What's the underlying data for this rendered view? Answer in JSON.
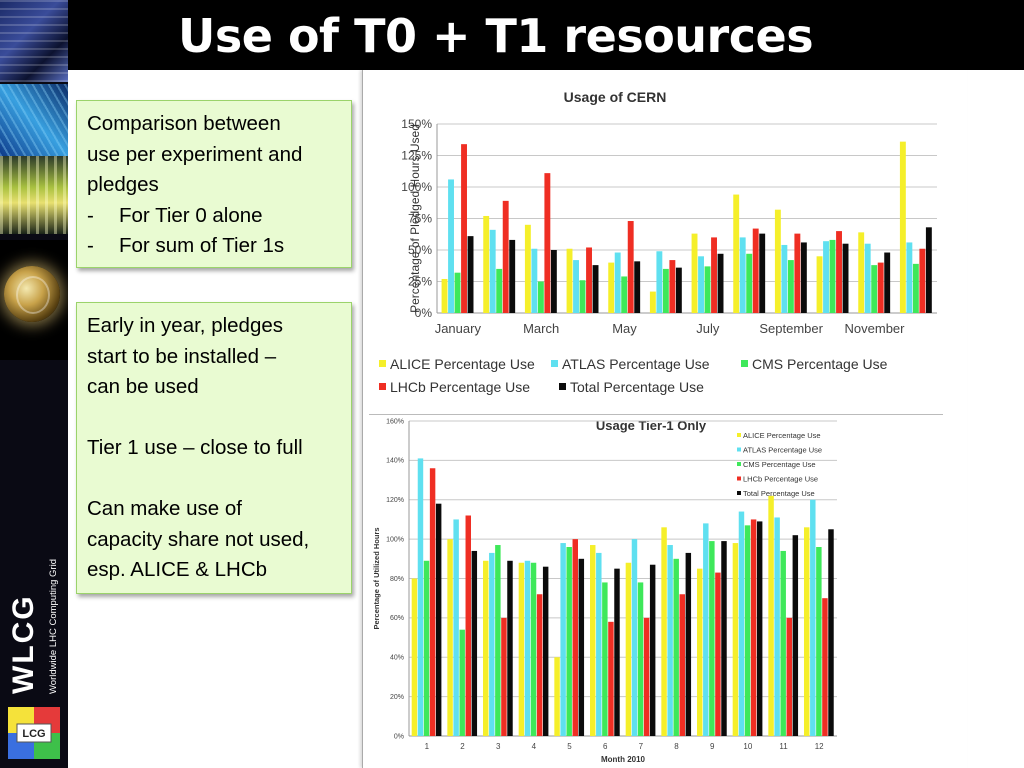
{
  "slide": {
    "title": "Use of T0 + T1 resources",
    "logo_text": "WLCG",
    "logo_subtext": "Worldwide LHC Computing Grid",
    "badge_text": "LCG"
  },
  "notes": {
    "box1": {
      "lines": [
        "Comparison between",
        "use per experiment and",
        "pledges"
      ],
      "bullets": [
        {
          "dash": "-",
          "text": "For Tier 0 alone"
        },
        {
          "dash": "-",
          "text": "For sum of Tier 1s"
        }
      ]
    },
    "box2": {
      "lines": [
        "Early in year, pledges",
        "start to be installed –",
        "can be used",
        "",
        "Tier 1 use – close to full",
        "",
        "Can make use of",
        "capacity share not used,",
        "esp. ALICE & LHCb"
      ]
    }
  },
  "colors": {
    "alice": "#f5ef2a",
    "atlas": "#5fe0f0",
    "cms": "#3ee85a",
    "lhcb": "#ef2e23",
    "total": "#0b0b0b"
  },
  "chart_data": [
    {
      "type": "bar",
      "title": "Usage of CERN",
      "ylabel": "Percentage of Pledged Hours Used",
      "xlabel": "",
      "ylim": [
        0,
        150
      ],
      "yticks": [
        "0%",
        "25%",
        "50%",
        "75%",
        "100%",
        "125%",
        "150%"
      ],
      "x_tick_labels": [
        "January",
        "March",
        "May",
        "July",
        "September",
        "November"
      ],
      "grid": true,
      "legend_position": "bottom",
      "categories": [
        "Jan",
        "Feb",
        "Mar",
        "Apr",
        "May",
        "Jun",
        "Jul",
        "Aug",
        "Sep",
        "Oct",
        "Nov",
        "Dec"
      ],
      "series": [
        {
          "name": "ALICE Percentage Use",
          "color_key": "alice",
          "values": [
            27,
            77,
            70,
            51,
            40,
            17,
            63,
            94,
            82,
            45,
            64,
            136
          ]
        },
        {
          "name": "ATLAS Percentage Use",
          "color_key": "atlas",
          "values": [
            106,
            66,
            51,
            42,
            48,
            49,
            45,
            60,
            54,
            57,
            55,
            56
          ]
        },
        {
          "name": "CMS Percentage Use",
          "color_key": "cms",
          "values": [
            32,
            35,
            25,
            26,
            29,
            35,
            37,
            47,
            42,
            58,
            38,
            39
          ]
        },
        {
          "name": "LHCb Percentage Use",
          "color_key": "lhcb",
          "values": [
            134,
            89,
            111,
            52,
            73,
            42,
            60,
            67,
            63,
            65,
            40,
            51
          ]
        },
        {
          "name": "Total Percentage Use",
          "color_key": "total",
          "values": [
            61,
            58,
            50,
            38,
            41,
            36,
            47,
            63,
            56,
            55,
            48,
            68
          ]
        }
      ]
    },
    {
      "type": "bar",
      "title": "Usage Tier-1 Only",
      "ylabel": "Percentage of Utilized Hours",
      "xlabel": "Month 2010",
      "ylim": [
        0,
        160
      ],
      "yticks": [
        "0%",
        "20%",
        "40%",
        "60%",
        "80%",
        "100%",
        "120%",
        "140%",
        "160%"
      ],
      "x_tick_labels": [
        "1",
        "2",
        "3",
        "4",
        "5",
        "6",
        "7",
        "8",
        "9",
        "10",
        "11",
        "12"
      ],
      "grid": true,
      "legend_position": "top-right",
      "categories": [
        "1",
        "2",
        "3",
        "4",
        "5",
        "6",
        "7",
        "8",
        "9",
        "10",
        "11",
        "12"
      ],
      "series": [
        {
          "name": "ALICE Percentage Use",
          "color_key": "alice",
          "values": [
            80,
            100,
            89,
            88,
            40,
            97,
            88,
            106,
            85,
            98,
            122,
            106
          ]
        },
        {
          "name": "ATLAS Percentage Use",
          "color_key": "atlas",
          "values": [
            141,
            110,
            93,
            89,
            98,
            93,
            100,
            97,
            108,
            114,
            111,
            120
          ]
        },
        {
          "name": "CMS Percentage Use",
          "color_key": "cms",
          "values": [
            89,
            54,
            97,
            88,
            96,
            78,
            78,
            90,
            99,
            107,
            94,
            96
          ]
        },
        {
          "name": "LHCb Percentage Use",
          "color_key": "lhcb",
          "values": [
            136,
            112,
            60,
            72,
            100,
            58,
            60,
            72,
            83,
            110,
            60,
            70
          ]
        },
        {
          "name": "Total Percentage Use",
          "color_key": "total",
          "values": [
            118,
            94,
            89,
            86,
            90,
            85,
            87,
            93,
            99,
            109,
            102,
            105
          ]
        }
      ]
    }
  ]
}
